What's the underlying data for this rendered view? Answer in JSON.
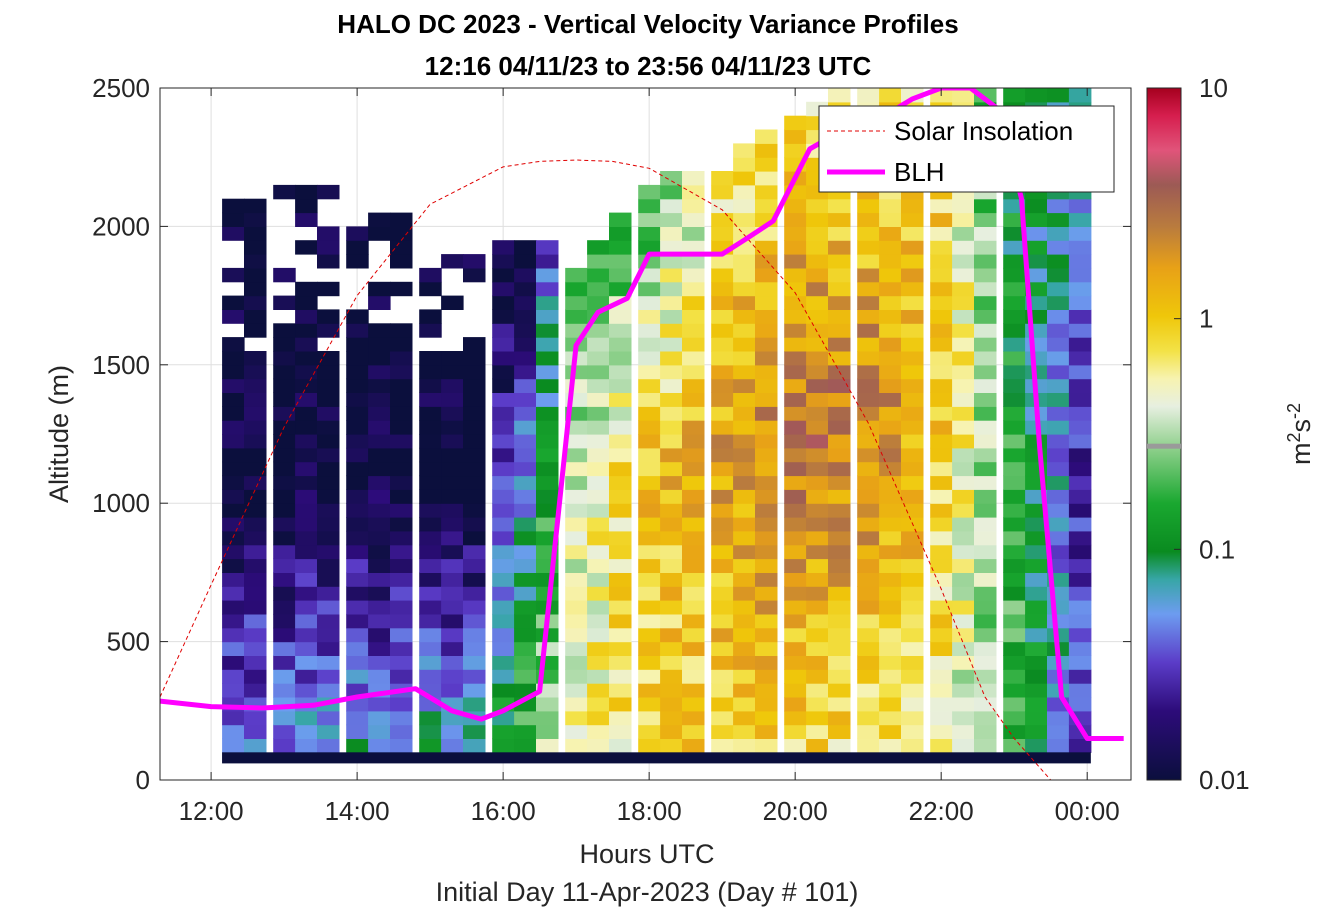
{
  "title": {
    "line1": "HALO DC 2023 - Vertical Velocity Variance Profiles",
    "line2": "12:16 04/11/23 to 23:56 04/11/23  UTC"
  },
  "axes": {
    "ylabel": "Altitude (m)",
    "xlabel": "Hours UTC",
    "xlabel2": "Initial Day 11-Apr-2023 (Day # 101)",
    "xticks": [
      {
        "h": 12,
        "label": "12:00"
      },
      {
        "h": 14,
        "label": "14:00"
      },
      {
        "h": 16,
        "label": "16:00"
      },
      {
        "h": 18,
        "label": "18:00"
      },
      {
        "h": 20,
        "label": "20:00"
      },
      {
        "h": 22,
        "label": "22:00"
      },
      {
        "h": 24,
        "label": "00:00"
      }
    ],
    "yticks": [
      {
        "v": 0,
        "label": "0"
      },
      {
        "v": 500,
        "label": "500"
      },
      {
        "v": 1000,
        "label": "1000"
      },
      {
        "v": 1500,
        "label": "1500"
      },
      {
        "v": 2000,
        "label": "2000"
      },
      {
        "v": 2500,
        "label": "2500"
      }
    ]
  },
  "colorbar": {
    "label_base": "m",
    "label_sup1": "2",
    "label_mid": "s",
    "label_sup2": "-2",
    "ticks": [
      {
        "v": 0.01,
        "label": "0.01"
      },
      {
        "v": 0.1,
        "label": "0.1"
      },
      {
        "v": 1,
        "label": "1"
      },
      {
        "v": 10,
        "label": "10"
      }
    ],
    "marker_value": 0.28
  },
  "legend": {
    "solar_label": "Solar Insolation",
    "blh_label": "BLH"
  },
  "colors": {
    "blh": "#ff00ff",
    "solar": "#e00000",
    "floor": "#0b0f3d"
  },
  "chart_data": {
    "type": "heatmap",
    "title": "HALO DC 2023 - Vertical Velocity Variance Profiles",
    "xlabel": "Hours UTC",
    "ylabel": "Altitude (m)",
    "xlim": [
      11.3,
      24.6
    ],
    "ylim": [
      0,
      2500
    ],
    "color_scale": "log",
    "clim": [
      0.01,
      10
    ],
    "profile_times_hours": [
      12.3,
      12.6,
      13.0,
      13.3,
      13.6,
      14.0,
      14.3,
      14.6,
      15.0,
      15.3,
      15.6,
      16.0,
      16.3,
      16.6,
      17.0,
      17.3,
      17.6,
      18.0,
      18.3,
      18.6,
      19.0,
      19.3,
      19.6,
      20.0,
      20.3,
      20.6,
      21.0,
      21.3,
      21.6,
      22.0,
      22.3,
      22.6,
      23.0,
      23.3,
      23.6,
      23.9
    ],
    "variance_profiles_m2s2": [
      {
        "t": 12.3,
        "z_top": 2100,
        "near_surface": 0.05,
        "mid": 0.01,
        "top": 0.01
      },
      {
        "t": 14.0,
        "z_top": 2150,
        "near_surface": 0.06,
        "mid": 0.01,
        "top": 0.01
      },
      {
        "t": 15.6,
        "z_top": 1900,
        "near_surface": 0.08,
        "mid": 0.01,
        "top": 0.01
      },
      {
        "t": 16.3,
        "z_top": 1950,
        "near_surface": 0.2,
        "mid": 0.06,
        "top": 0.01
      },
      {
        "t": 17.0,
        "z_top": 1850,
        "near_surface": 0.5,
        "mid": 0.4,
        "top": 0.2
      },
      {
        "t": 18.0,
        "z_top": 2150,
        "near_surface": 0.8,
        "mid": 1.1,
        "top": 0.15
      },
      {
        "t": 19.0,
        "z_top": 2200,
        "near_surface": 0.9,
        "mid": 1.6,
        "top": 0.6
      },
      {
        "t": 20.0,
        "z_top": 2400,
        "near_surface": 0.8,
        "mid": 3.0,
        "top": 0.7
      },
      {
        "t": 21.0,
        "z_top": 2500,
        "near_surface": 0.7,
        "mid": 2.5,
        "top": 0.6
      },
      {
        "t": 22.0,
        "z_top": 2500,
        "near_surface": 0.6,
        "mid": 1.0,
        "top": 0.8
      },
      {
        "t": 23.0,
        "z_top": 2500,
        "near_surface": 0.2,
        "mid": 0.15,
        "top": 0.08
      },
      {
        "t": 23.9,
        "z_top": 2500,
        "near_surface": 0.03,
        "mid": 0.03,
        "top": 0.1
      }
    ],
    "series": [
      {
        "name": "BLH",
        "x": [
          11.3,
          12.0,
          12.7,
          13.4,
          14.0,
          14.8,
          15.3,
          15.7,
          16.0,
          16.5,
          17.0,
          17.3,
          17.7,
          18.0,
          18.3,
          18.6,
          19.0,
          19.3,
          19.7,
          20.2,
          20.6,
          21.1,
          21.6,
          22.0,
          22.4,
          22.8,
          23.1,
          23.35,
          23.65,
          24.0,
          24.5
        ],
        "y": [
          285,
          265,
          260,
          270,
          300,
          330,
          250,
          220,
          250,
          320,
          1570,
          1690,
          1740,
          1900,
          1900,
          1900,
          1900,
          1950,
          2020,
          2280,
          2340,
          2380,
          2460,
          2500,
          2500,
          2420,
          2100,
          1200,
          300,
          150,
          150
        ]
      },
      {
        "name": "Solar Insolation",
        "x": [
          11.3,
          12.0,
          13.0,
          14.0,
          15.0,
          16.0,
          16.5,
          17.0,
          17.5,
          18.0,
          19.0,
          20.0,
          21.0,
          22.0,
          22.6,
          23.0,
          23.5,
          23.8,
          24.0,
          24.6
        ],
        "y": [
          300,
          705,
          1275,
          1750,
          2080,
          2215,
          2235,
          2240,
          2235,
          2210,
          2060,
          1760,
          1290,
          690,
          300,
          150,
          0,
          0,
          0,
          0
        ]
      }
    ],
    "legend_position": "top-right",
    "grid": true
  }
}
